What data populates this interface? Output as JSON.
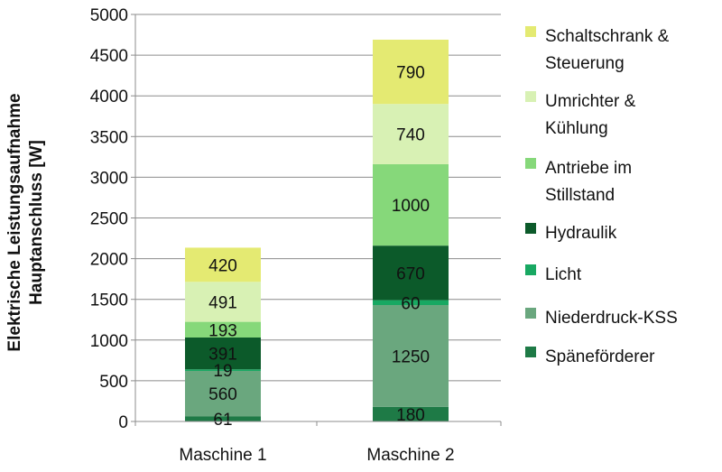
{
  "chart_data": {
    "type": "bar",
    "stacked": true,
    "categories": [
      "Maschine 1",
      "Maschine 2"
    ],
    "ylabel": [
      "Elektrische Leistungsaufnahme",
      "Hauptanschluss  [W]"
    ],
    "ylim": [
      0,
      5000
    ],
    "yticks": [
      0,
      500,
      1000,
      1500,
      2000,
      2500,
      3000,
      3500,
      4000,
      4500,
      5000
    ],
    "grid": true,
    "legend_position": "right",
    "series": [
      {
        "name": "Späneförderer",
        "color": "#1e7a46",
        "values": [
          61,
          180
        ]
      },
      {
        "name": "Niederdruck-KSS",
        "color": "#6aa77e",
        "values": [
          560,
          1250
        ]
      },
      {
        "name": "Licht",
        "color": "#18a862",
        "values": [
          19,
          60
        ]
      },
      {
        "name": "Hydraulik",
        "color": "#0c5a2a",
        "values": [
          391,
          670
        ]
      },
      {
        "name": "Antriebe im Stillstand",
        "color": "#86d87a",
        "values": [
          193,
          1000
        ]
      },
      {
        "name": "Umrichter & Kühlung",
        "color": "#d8f1b4",
        "values": [
          491,
          740
        ]
      },
      {
        "name": "Schaltschrank & Steuerung",
        "color": "#e4ea72",
        "values": [
          420,
          790
        ]
      }
    ],
    "legend": [
      {
        "lines": [
          "Schaltschrank &",
          "Steuerung"
        ],
        "color": "#e4ea72",
        "icon": "legend-swatch-icon"
      },
      {
        "lines": [
          "Umrichter &",
          "Kühlung"
        ],
        "color": "#d8f1b4",
        "icon": "legend-swatch-icon"
      },
      {
        "lines": [
          "Antriebe im",
          "Stillstand"
        ],
        "color": "#86d87a",
        "icon": "legend-swatch-icon"
      },
      {
        "lines": [
          "Hydraulik"
        ],
        "color": "#0c5a2a",
        "icon": "legend-swatch-icon"
      },
      {
        "lines": [
          "Licht"
        ],
        "color": "#18a862",
        "icon": "legend-swatch-icon"
      },
      {
        "lines": [
          "Niederdruck-KSS"
        ],
        "color": "#6aa77e",
        "icon": "legend-swatch-icon"
      },
      {
        "lines": [
          "Späneförderer"
        ],
        "color": "#1e7a46",
        "icon": "legend-swatch-icon"
      }
    ]
  }
}
